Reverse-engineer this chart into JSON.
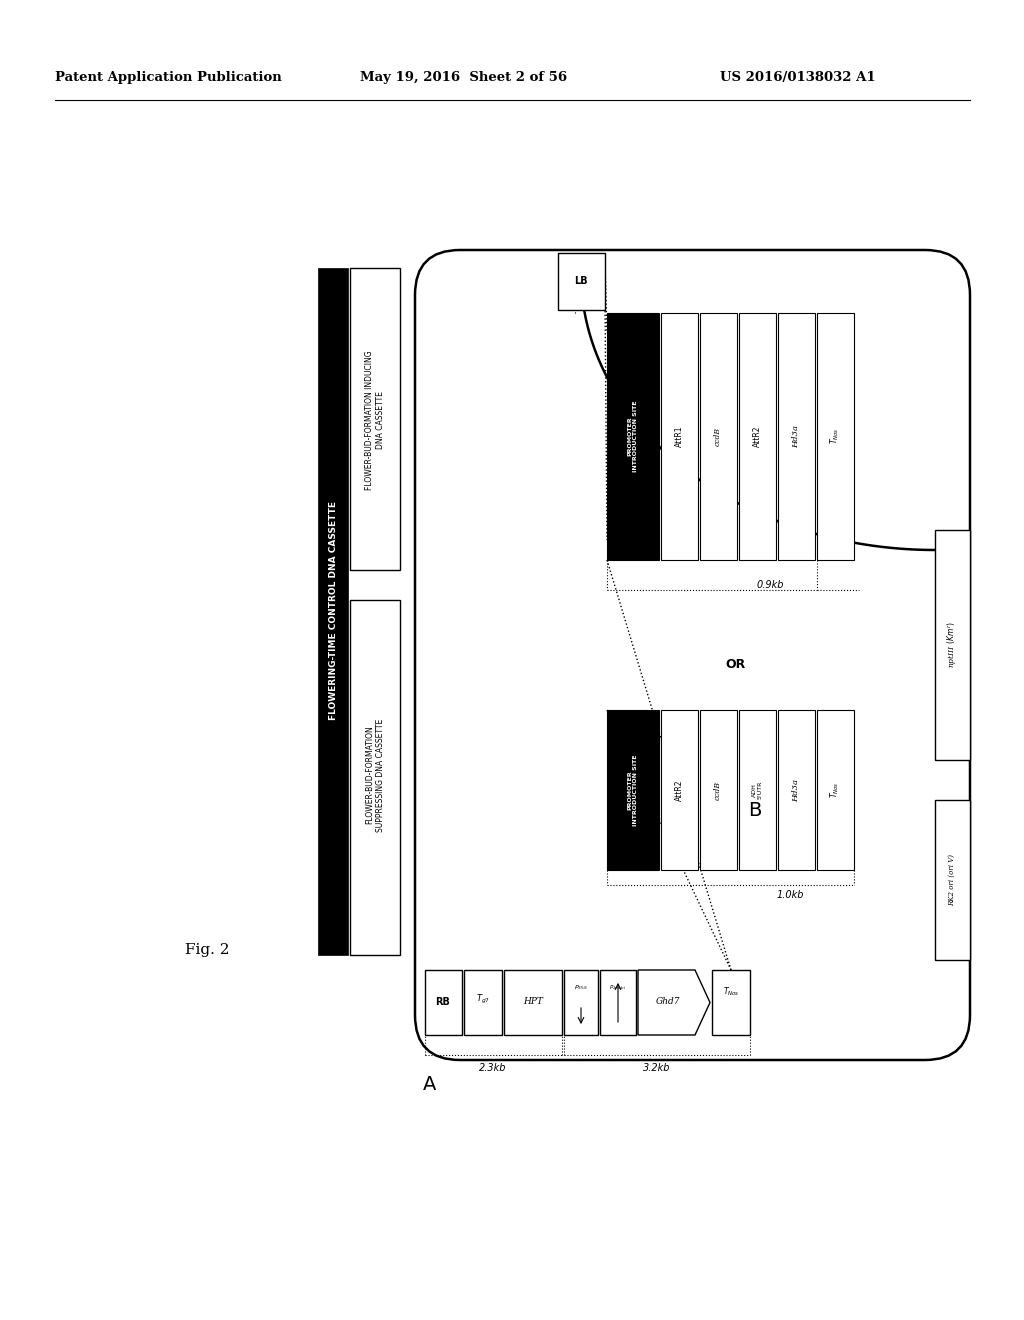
{
  "header_left": "Patent Application Publication",
  "header_mid": "May 19, 2016  Sheet 2 of 56",
  "header_right": "US 2016/0138032 A1",
  "fig_label": "Fig. 2",
  "bg_color": "#ffffff",
  "text_color": "#000000"
}
